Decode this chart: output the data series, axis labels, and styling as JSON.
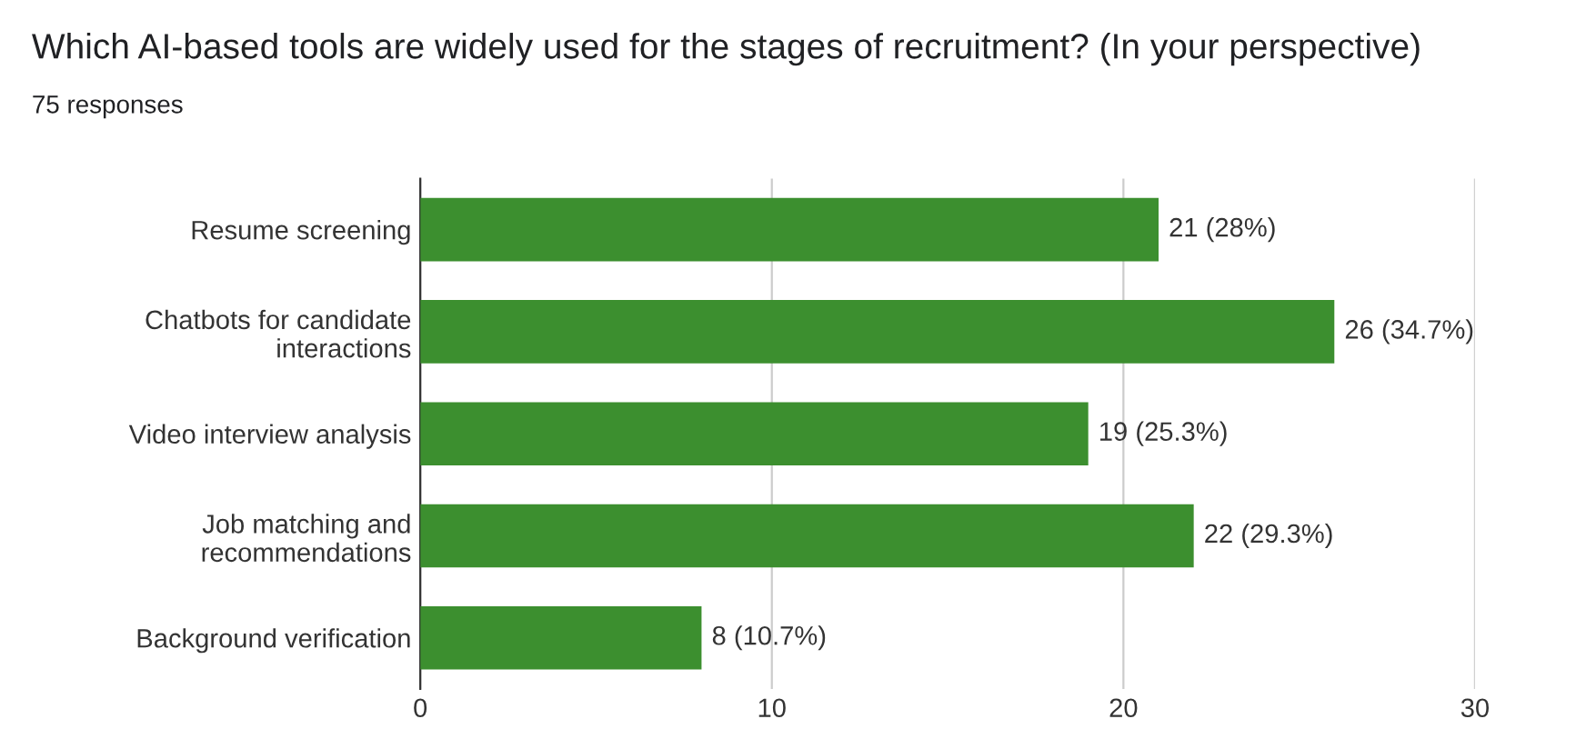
{
  "chart_data": {
    "type": "bar",
    "orientation": "horizontal",
    "title": "Which AI-based tools are widely used for the stages of recruitment? (In your perspective)",
    "subtitle": "75 responses",
    "categories": [
      "Resume screening",
      "Chatbots for candidate\ninteractions",
      "Video interview analysis",
      "Job matching and\nrecommendations",
      "Background verification"
    ],
    "values": [
      21,
      26,
      19,
      22,
      8
    ],
    "value_labels": [
      "21 (28%)",
      "26 (34.7%)",
      "19 (25.3%)",
      "22 (29.3%)",
      "8 (10.7%)"
    ],
    "color": "#3c8f2f",
    "xlim": [
      0,
      30
    ],
    "xticks": [
      0,
      10,
      20,
      30
    ],
    "grid": "x"
  }
}
